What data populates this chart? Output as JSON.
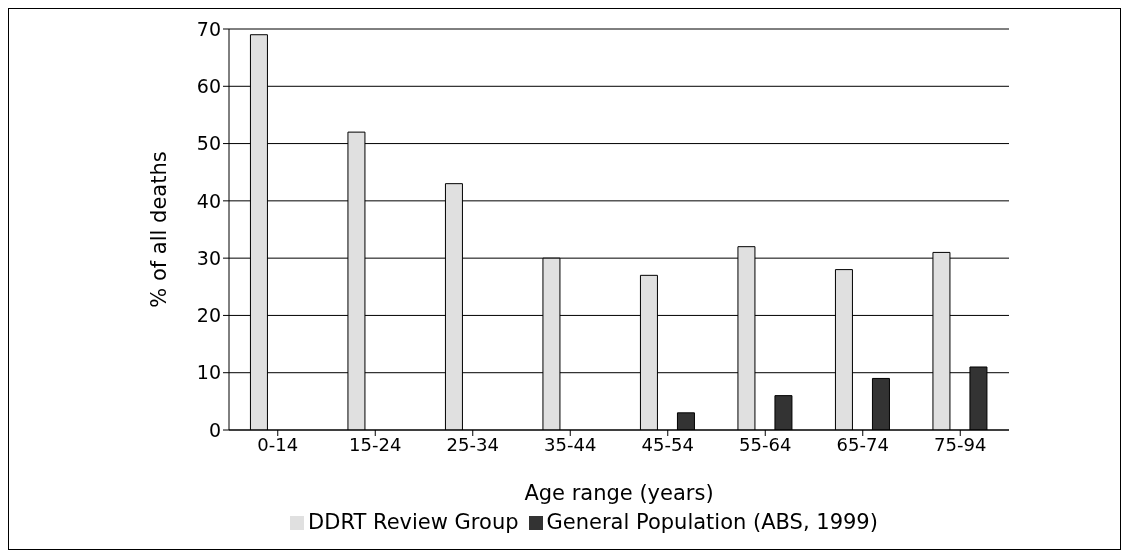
{
  "chart_data": {
    "type": "bar",
    "xlabel": "Age range (years)",
    "ylabel": "% of all deaths",
    "categories": [
      "0-14",
      "15-24",
      "25-34",
      "35-44",
      "45-54",
      "55-64",
      "65-74",
      "75-94"
    ],
    "series": [
      {
        "name": "DDRT Review Group",
        "color": "#e0e0e0",
        "values": [
          69,
          52,
          43,
          30,
          27,
          32,
          28,
          31
        ]
      },
      {
        "name": "General Population (ABS, 1999)",
        "color": "#333333",
        "values": [
          null,
          null,
          null,
          null,
          3,
          6,
          9,
          11
        ]
      }
    ],
    "ylim": [
      0,
      70
    ],
    "yticks": [
      0,
      10,
      20,
      30,
      40,
      50,
      60,
      70
    ],
    "grid": "y",
    "legend": "bottom"
  }
}
